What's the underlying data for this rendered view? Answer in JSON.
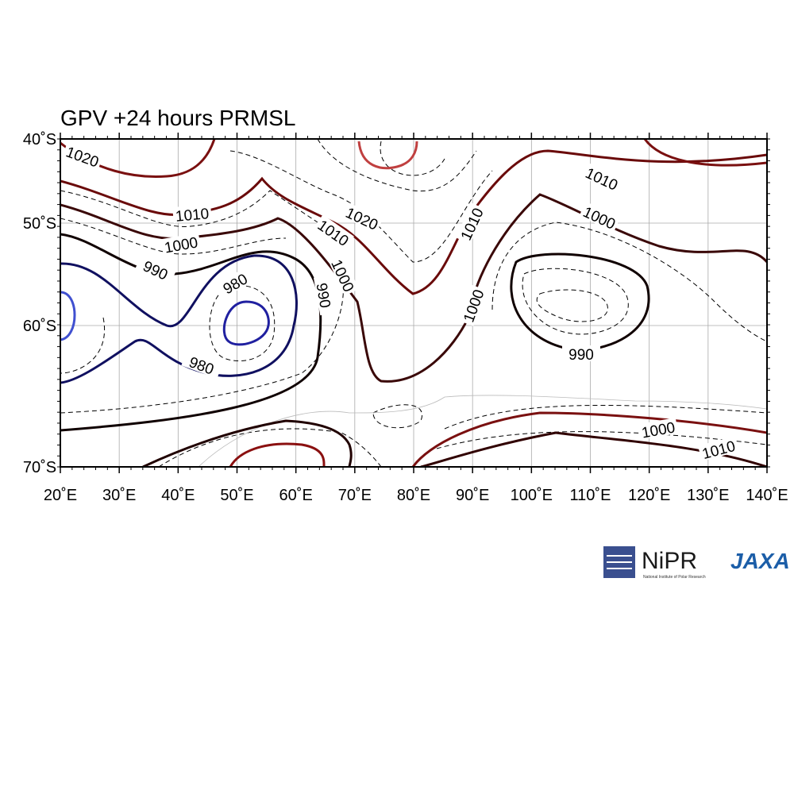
{
  "title": "GPV +24 hours PRMSL",
  "lat_labels": [
    "40˚S",
    "50˚S",
    "60˚S",
    "70˚S"
  ],
  "lon_labels": [
    "20˚E",
    "30˚E",
    "40˚E",
    "50˚E",
    "60˚E",
    "70˚E",
    "80˚E",
    "90˚E",
    "100˚E",
    "110˚E",
    "120˚E",
    "130˚E",
    "140˚E"
  ],
  "contour_labels": [
    "1020",
    "1010",
    "1000",
    "990",
    "980",
    "980",
    "1020",
    "1010",
    "1000",
    "990",
    "1010",
    "1000",
    "990",
    "1010",
    "1000",
    "1000",
    "1010"
  ],
  "logos": {
    "nipr": "NiPR",
    "nipr_sub": "National Institute of Polar Research",
    "jaxa": "JAXA"
  }
}
